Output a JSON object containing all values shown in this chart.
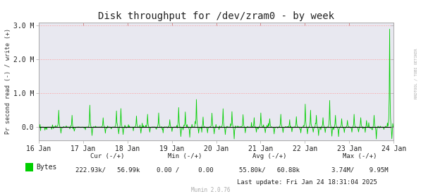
{
  "title": "Disk throughput for /dev/zram0 - by week",
  "ylabel": "Pr second read (-) / write (+)",
  "xlabel_ticks": [
    "16 Jan",
    "17 Jan",
    "18 Jan",
    "19 Jan",
    "20 Jan",
    "21 Jan",
    "22 Jan",
    "23 Jan",
    "24 Jan"
  ],
  "ytick_values": [
    0,
    1000000,
    2000000,
    3000000
  ],
  "ytick_labels": [
    "0.0",
    "1.0 M",
    "2.0 M",
    "3.0 M"
  ],
  "ymin": -400000,
  "ymax": 3100000,
  "line_color": "#00CF00",
  "bg_color": "#FFFFFF",
  "plot_bg_color": "#E8E8F0",
  "grid_color": "#FF9999",
  "axis_color": "#AAAAAA",
  "zero_line_color": "#000000",
  "legend_label": "Bytes",
  "legend_color": "#00CF00",
  "cur_label": "Cur (-/+)",
  "cur_val": "222.93k/   56.99k",
  "min_label": "Min (-/+)",
  "min_val": "0.00 /     0.00",
  "avg_label": "Avg (-/+)",
  "avg_val": "55.80k/   60.88k",
  "max_label": "Max (-/+)",
  "max_val": "3.74M/    9.95M",
  "last_update": "Last update: Fri Jan 24 18:31:04 2025",
  "munin_version": "Munin 2.0.76",
  "watermark": "RRDTOOL / TOBI OETIKER",
  "title_fontsize": 10,
  "axis_fontsize": 7,
  "legend_fontsize": 7,
  "num_points": 800,
  "seed": 42
}
